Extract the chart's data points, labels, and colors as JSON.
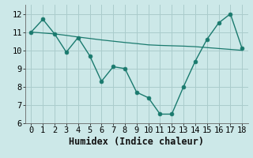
{
  "xlabel": "Humidex (Indice chaleur)",
  "ylabel": "",
  "bg_color": "#cce8e8",
  "grid_color": "#aacccc",
  "line_color": "#1a7a6e",
  "series1_x": [
    0,
    1,
    2,
    3,
    4,
    5,
    6,
    7,
    8,
    9,
    10,
    11,
    12,
    13,
    14,
    15,
    16,
    17,
    18
  ],
  "series1_y": [
    11.0,
    11.7,
    10.9,
    9.9,
    10.7,
    9.7,
    8.3,
    9.1,
    9.0,
    7.7,
    7.4,
    6.5,
    6.5,
    8.0,
    9.4,
    10.6,
    11.5,
    12.0,
    10.1
  ],
  "series2_x": [
    0,
    1,
    2,
    3,
    4,
    5,
    6,
    7,
    8,
    9,
    10,
    11,
    12,
    13,
    14,
    15,
    16,
    17,
    18
  ],
  "series2_y": [
    11.0,
    10.95,
    10.9,
    10.82,
    10.73,
    10.65,
    10.57,
    10.5,
    10.43,
    10.37,
    10.3,
    10.27,
    10.25,
    10.23,
    10.2,
    10.15,
    10.1,
    10.05,
    10.0
  ],
  "xlim": [
    -0.5,
    18.5
  ],
  "ylim": [
    6.0,
    12.5
  ],
  "yticks": [
    6,
    7,
    8,
    9,
    10,
    11,
    12
  ],
  "xticks": [
    0,
    1,
    2,
    3,
    4,
    5,
    6,
    7,
    8,
    9,
    10,
    11,
    12,
    13,
    14,
    15,
    16,
    17,
    18
  ],
  "tick_fontsize": 7.5,
  "xlabel_fontsize": 8.5,
  "marker_size": 3.5,
  "linewidth1": 1.0,
  "linewidth2": 0.9
}
